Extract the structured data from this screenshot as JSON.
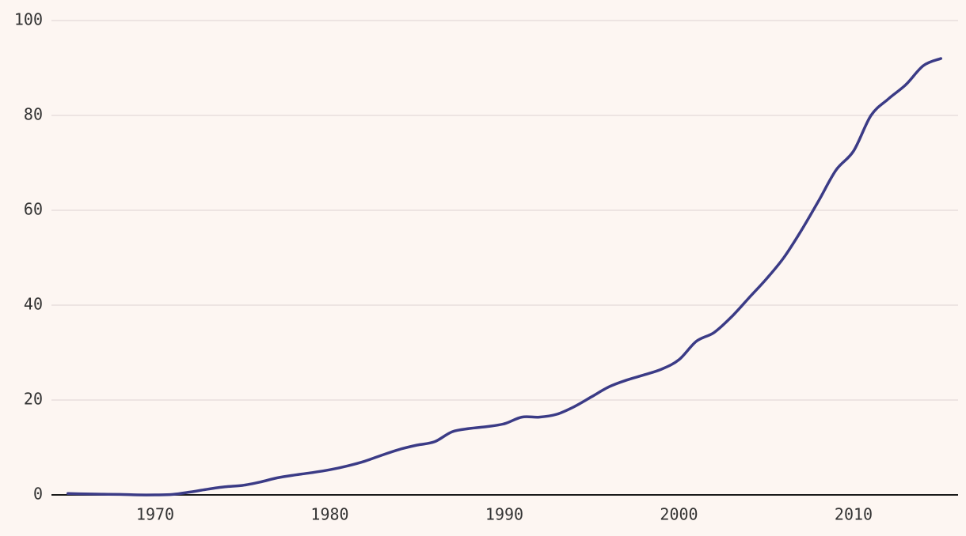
{
  "chart_data": {
    "type": "line",
    "title": "",
    "xlabel": "",
    "ylabel": "",
    "xlim": [
      1965,
      2015
    ],
    "ylim": [
      0,
      100
    ],
    "x_ticks": [
      "1970",
      "1980",
      "1990",
      "2000",
      "2010"
    ],
    "y_ticks": [
      "0",
      "20",
      "40",
      "60",
      "80",
      "100"
    ],
    "grid": "horizontal",
    "legend": "none",
    "series": [
      {
        "color": "#3b3b86",
        "x": [
          1965,
          1966,
          1967,
          1968,
          1969,
          1970,
          1971,
          1972,
          1973,
          1974,
          1975,
          1976,
          1977,
          1978,
          1979,
          1980,
          1981,
          1982,
          1983,
          1984,
          1985,
          1986,
          1987,
          1988,
          1989,
          1990,
          1991,
          1992,
          1993,
          1994,
          1995,
          1996,
          1997,
          1998,
          1999,
          2000,
          2001,
          2002,
          2003,
          2004,
          2005,
          2006,
          2007,
          2008,
          2009,
          2010,
          2011,
          2012,
          2013,
          2014,
          2015
        ],
        "values": [
          0.3,
          0.2,
          0.15,
          0.1,
          0.0,
          0.0,
          0.1,
          0.6,
          1.2,
          1.7,
          2.0,
          2.7,
          3.6,
          4.2,
          4.7,
          5.3,
          6.1,
          7.1,
          8.4,
          9.6,
          10.5,
          11.2,
          13.3,
          14.0,
          14.4,
          15.0,
          16.4,
          16.4,
          17.0,
          18.6,
          20.7,
          22.8,
          24.2,
          25.3,
          26.5,
          28.5,
          32.4,
          34.2,
          37.5,
          41.5,
          45.5,
          50.0,
          55.7,
          62.0,
          68.5,
          72.5,
          80.0,
          83.5,
          86.5,
          90.5,
          92.0
        ]
      }
    ]
  }
}
